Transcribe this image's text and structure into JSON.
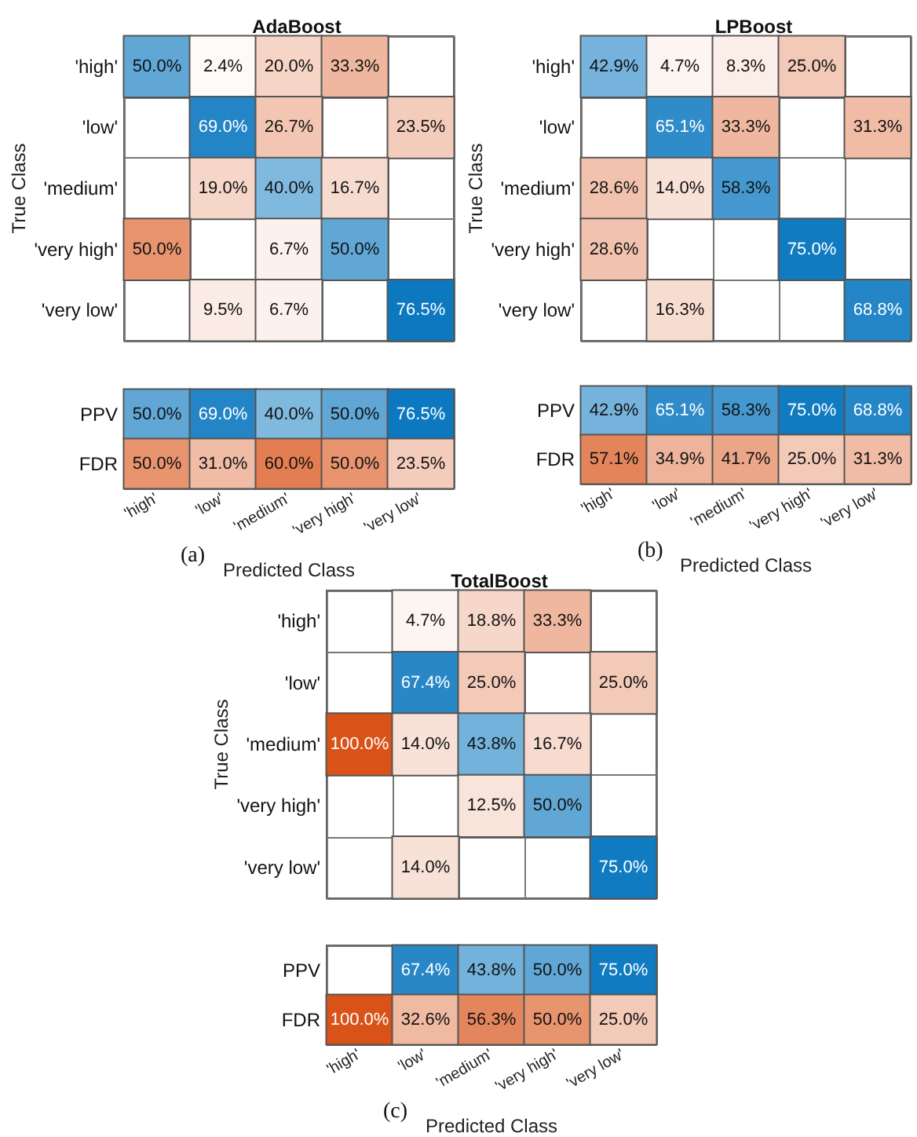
{
  "chart_data": [
    {
      "type": "heatmap",
      "title": "AdaBoost",
      "ylabel": "True Class",
      "tick_labels": "y",
      "categories": [
        "'high'",
        "'low'",
        "'medium'",
        "'very high'",
        "'very low'"
      ],
      "y_categories": [
        "'high'",
        "'low'",
        "'medium'",
        "'very high'",
        "'very low'"
      ],
      "cells": [
        [
          50.0,
          2.4,
          20.0,
          33.3,
          null
        ],
        [
          null,
          69.0,
          26.7,
          null,
          23.5
        ],
        [
          null,
          19.0,
          40.0,
          16.7,
          null
        ],
        [
          50.0,
          null,
          6.7,
          50.0,
          null
        ],
        [
          null,
          9.5,
          6.7,
          null,
          76.5
        ]
      ],
      "cell_labels": [
        [
          "50.0%",
          "2.4%",
          "20.0%",
          "33.3%",
          null
        ],
        [
          null,
          "69.0%",
          "26.7%",
          null,
          "23.5%"
        ],
        [
          null,
          "19.0%",
          "40.0%",
          "16.7%",
          null
        ],
        [
          "50.0%",
          null,
          "6.7%",
          "50.0%",
          null
        ],
        [
          null,
          "9.5%",
          "6.7%",
          null,
          "76.5%"
        ]
      ]
    },
    {
      "type": "heatmap",
      "xlabel": "Predicted Class",
      "annotations": [
        "(a)"
      ],
      "categories": [
        "'high'",
        "'low'",
        "'medium'",
        "'very high'",
        "'very low'"
      ],
      "y_categories": [
        "PPV",
        "FDR"
      ],
      "cells": [
        [
          50.0,
          69.0,
          40.0,
          50.0,
          76.5
        ],
        [
          50.0,
          31.0,
          60.0,
          50.0,
          23.5
        ]
      ],
      "cell_labels": [
        [
          "50.0%",
          "69.0%",
          "40.0%",
          "50.0%",
          "76.5%"
        ],
        [
          "50.0%",
          "31.0%",
          "60.0%",
          "50.0%",
          "23.5%"
        ]
      ]
    },
    {
      "type": "heatmap",
      "title": "LPBoost",
      "ylabel": "True Class",
      "tick_labels": "y",
      "categories": [
        "'high'",
        "'low'",
        "'medium'",
        "'very high'",
        "'very low'"
      ],
      "y_categories": [
        "'high'",
        "'low'",
        "'medium'",
        "'very high'",
        "'very low'"
      ],
      "cells": [
        [
          42.9,
          4.7,
          8.3,
          25.0,
          null
        ],
        [
          null,
          65.1,
          33.3,
          null,
          31.3
        ],
        [
          28.6,
          14.0,
          58.3,
          null,
          null
        ],
        [
          28.6,
          null,
          null,
          75.0,
          null
        ],
        [
          null,
          16.3,
          null,
          null,
          68.8
        ]
      ],
      "cell_labels": [
        [
          "42.9%",
          "4.7%",
          "8.3%",
          "25.0%",
          null
        ],
        [
          null,
          "65.1%",
          "33.3%",
          null,
          "31.3%"
        ],
        [
          "28.6%",
          "14.0%",
          "58.3%",
          null,
          null
        ],
        [
          "28.6%",
          null,
          null,
          "75.0%",
          null
        ],
        [
          null,
          "16.3%",
          null,
          null,
          "68.8%"
        ]
      ]
    },
    {
      "type": "heatmap",
      "xlabel": "Predicted Class",
      "annotations": [
        "(b)"
      ],
      "categories": [
        "'high'",
        "'low'",
        "'medium'",
        "'very high'",
        "'very low'"
      ],
      "y_categories": [
        "PPV",
        "FDR"
      ],
      "cells": [
        [
          42.9,
          65.1,
          58.3,
          75.0,
          68.8
        ],
        [
          57.1,
          34.9,
          41.7,
          25.0,
          31.3
        ]
      ],
      "cell_labels": [
        [
          "42.9%",
          "65.1%",
          "58.3%",
          "75.0%",
          "68.8%"
        ],
        [
          "57.1%",
          "34.9%",
          "41.7%",
          "25.0%",
          "31.3%"
        ]
      ]
    },
    {
      "type": "heatmap",
      "title": "TotalBoost",
      "ylabel": "True Class",
      "tick_labels": "y",
      "categories": [
        "'high'",
        "'low'",
        "'medium'",
        "'very high'",
        "'very low'"
      ],
      "y_categories": [
        "'high'",
        "'low'",
        "'medium'",
        "'very high'",
        "'very low'"
      ],
      "cells": [
        [
          null,
          4.7,
          18.8,
          33.3,
          null
        ],
        [
          null,
          67.4,
          25.0,
          null,
          25.0
        ],
        [
          100.0,
          14.0,
          43.8,
          16.7,
          null
        ],
        [
          null,
          null,
          12.5,
          50.0,
          null
        ],
        [
          null,
          14.0,
          null,
          null,
          75.0
        ]
      ],
      "cell_labels": [
        [
          null,
          "4.7%",
          "18.8%",
          "33.3%",
          null
        ],
        [
          null,
          "67.4%",
          "25.0%",
          null,
          "25.0%"
        ],
        [
          "100.0%",
          "14.0%",
          "43.8%",
          "16.7%",
          null
        ],
        [
          null,
          null,
          "12.5%",
          "50.0%",
          null
        ],
        [
          null,
          "14.0%",
          null,
          null,
          "75.0%"
        ]
      ]
    },
    {
      "type": "heatmap",
      "xlabel": "Predicted Class",
      "annotations": [
        "(c)"
      ],
      "categories": [
        "'high'",
        "'low'",
        "'medium'",
        "'very high'",
        "'very low'"
      ],
      "y_categories": [
        "PPV",
        "FDR"
      ],
      "cells": [
        [
          null,
          67.4,
          43.8,
          50.0,
          75.0
        ],
        [
          100.0,
          32.6,
          56.3,
          50.0,
          25.0
        ]
      ],
      "cell_labels": [
        [
          null,
          "67.4%",
          "43.8%",
          "50.0%",
          "75.0%"
        ],
        [
          "100.0%",
          "32.6%",
          "56.3%",
          "50.0%",
          "25.0%"
        ]
      ]
    }
  ]
}
